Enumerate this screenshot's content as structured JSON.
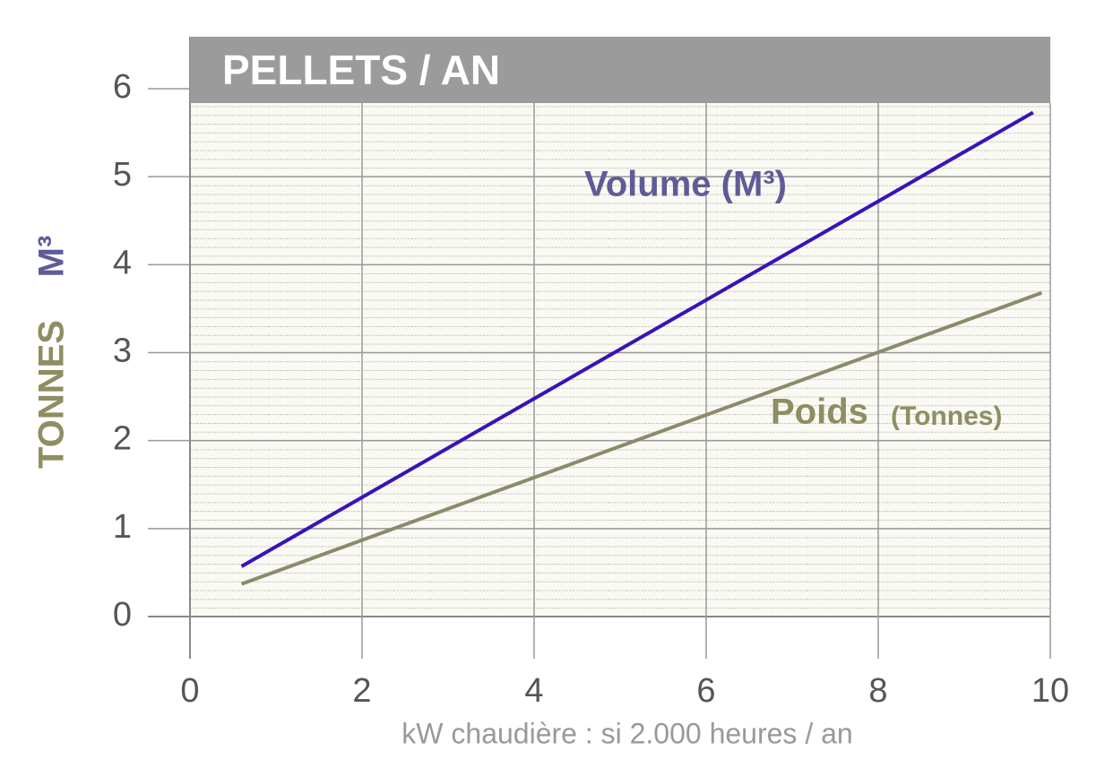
{
  "chart_data": {
    "type": "line",
    "title": "PELLETS / AN",
    "xlabel": "kW chaudière : si 2.000 heures / an",
    "ylabels": [
      "TONNES",
      "M³"
    ],
    "annotations": [
      "Volume (M³)",
      "Poids",
      "(Tonnes)"
    ],
    "series": [
      {
        "name": "Volume (M³)",
        "color": "#3a12b8",
        "x": [
          0.6,
          9.8
        ],
        "values": [
          0.57,
          5.73
        ]
      },
      {
        "name": "Poids (Tonnes)",
        "color": "#8c8a6a",
        "x": [
          0.6,
          9.9
        ],
        "values": [
          0.37,
          3.68
        ]
      }
    ],
    "xlim": [
      0,
      10
    ],
    "xticks": [
      0,
      2,
      4,
      6,
      8,
      10
    ],
    "ylim": [
      0,
      6
    ],
    "yticks": [
      0,
      1,
      2,
      3,
      4,
      5,
      6
    ],
    "grid": true
  }
}
